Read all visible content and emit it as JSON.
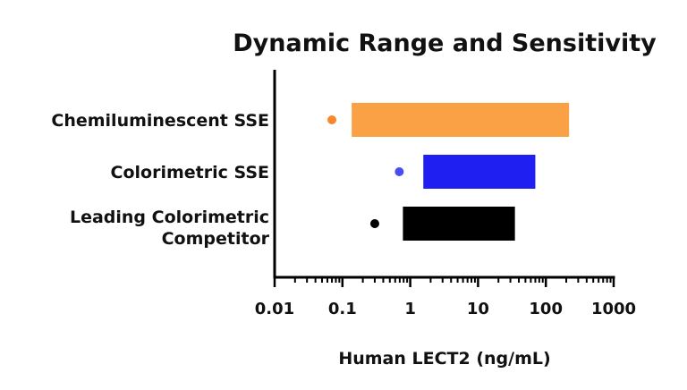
{
  "chart_data": {
    "type": "bar",
    "title": "Dynamic Range and Sensitivity",
    "xlabel": "Human LECT2 (ng/mL)",
    "ylabel": "",
    "xscale": "log",
    "xlim": [
      0.01,
      1000
    ],
    "x_ticks": [
      "0.01",
      "0.1",
      "1",
      "10",
      "100",
      "1000"
    ],
    "grid": false,
    "categories": [
      {
        "lines": [
          "Chemiluminescent SSE"
        ]
      },
      {
        "lines": [
          "Colorimetric SSE"
        ]
      },
      {
        "lines": [
          "Leading Colorimetric",
          "Competitor"
        ]
      }
    ],
    "series": [
      {
        "range_start": 0.137,
        "range_end": 220,
        "sensitivity": 0.07,
        "color": "#F9A144"
      },
      {
        "range_start": 1.56,
        "range_end": 70,
        "sensitivity": 0.69,
        "color": "#1F1FF2"
      },
      {
        "range_start": 0.78,
        "range_end": 35,
        "sensitivity": 0.3,
        "color": "#000000"
      }
    ],
    "dot_colors": [
      "#F9862D",
      "#4C4CF5",
      "#000000"
    ]
  }
}
